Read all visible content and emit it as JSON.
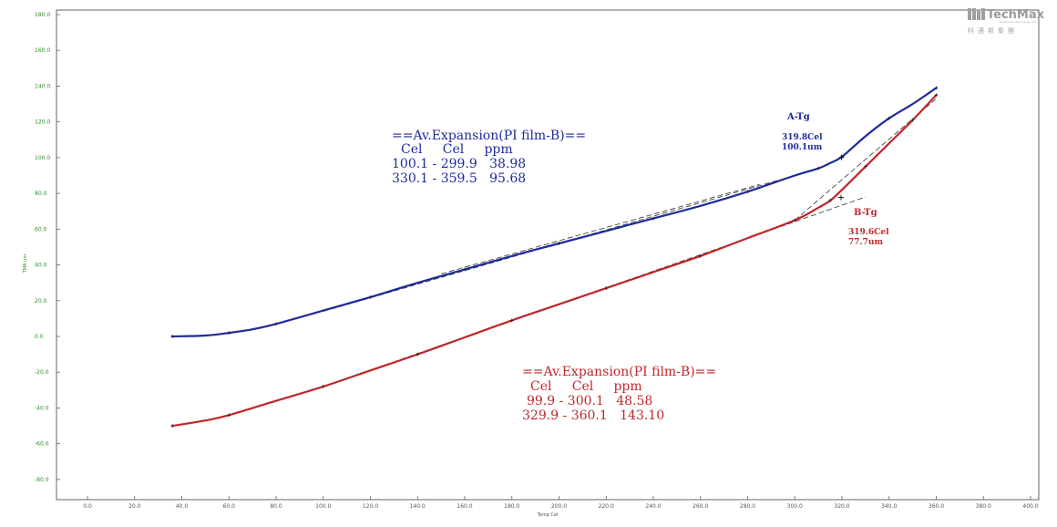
{
  "colors": {
    "blue": "#1f2a9a",
    "red": "#c0262a",
    "axis_text": "#2e8b2e",
    "dashed": "#333333"
  },
  "logo": {
    "name": "TechMax",
    "chinese": "科邁斯集團",
    "tagline": "Excellence Technology Ltd."
  },
  "chart_data": {
    "type": "line",
    "xlabel": "Temp Cel",
    "ylabel": "TMA um",
    "xlim": [
      -20,
      410
    ],
    "ylim": [
      -95,
      185
    ],
    "x_ticks": [
      "0.0",
      "20.0",
      "40.0",
      "60.0",
      "80.0",
      "100.0",
      "120.0",
      "140.0",
      "160.0",
      "180.0",
      "200.0",
      "220.0",
      "240.0",
      "260.0",
      "280.0",
      "300.0",
      "320.0",
      "340.0",
      "360.0",
      "380.0",
      "400.0"
    ],
    "y_ticks": [
      "180.0",
      "160.0",
      "140.0",
      "120.0",
      "100.0",
      "80.0",
      "60.0",
      "40.0",
      "20.0",
      "0.0",
      "-20.0",
      "-40.0",
      "-60.0",
      "-80.0"
    ],
    "series": [
      {
        "name": "A",
        "color": "#1f2a9a",
        "x": [
          36,
          50,
          60,
          70,
          80,
          100,
          120,
          140,
          160,
          180,
          200,
          220,
          240,
          260,
          280,
          300,
          310,
          315,
          320,
          330,
          340,
          350,
          360
        ],
        "y": [
          0,
          0.5,
          2,
          4,
          7,
          14.5,
          22,
          30,
          37.5,
          45,
          52,
          59,
          66,
          73,
          81,
          90,
          94,
          97,
          100.5,
          112,
          122,
          130,
          139
        ]
      },
      {
        "name": "B",
        "color": "#c0262a",
        "x": [
          36,
          50,
          60,
          80,
          100,
          120,
          140,
          160,
          180,
          200,
          220,
          240,
          260,
          280,
          300,
          310,
          315,
          320,
          330,
          340,
          350,
          360
        ],
        "y": [
          -50,
          -47,
          -44,
          -36,
          -28,
          -19,
          -10,
          -0.5,
          9,
          18,
          27,
          36,
          45,
          55,
          65,
          72,
          76,
          82,
          95,
          108,
          121,
          135
        ]
      }
    ],
    "fit_lines": [
      {
        "series": "A",
        "x": [
          100,
          300
        ],
        "y": [
          14,
          90
        ]
      },
      {
        "series": "A",
        "x": [
          150,
          285
        ],
        "y": [
          35,
          85
        ]
      },
      {
        "series": "B",
        "x": [
          100,
          330
        ],
        "y": [
          -28,
          78
        ]
      },
      {
        "series": "B",
        "x": [
          300,
          360
        ],
        "y": [
          65,
          133
        ]
      }
    ],
    "tg_markers": [
      {
        "series": "A",
        "x": 319.8,
        "y": 100.1
      },
      {
        "series": "B",
        "x": 319.6,
        "y": 77.7
      }
    ]
  },
  "annotations": {
    "blue_block": {
      "title": "==Av.Expansion(PI film-B)==",
      "header": "Cel     Cel     ppm",
      "rows": [
        "100.1 - 299.9   38.98",
        "330.1 - 359.5   95.68"
      ]
    },
    "red_block": {
      "title": "==Av.Expansion(PI film-B)==",
      "header": "Cel     Cel     ppm",
      "rows": [
        "99.9 - 300.1   48.58",
        "329.9 - 360.1   143.10"
      ]
    },
    "a_tg": {
      "label": "A-Tg",
      "temp": "319.8Cel",
      "value": "100.1um"
    },
    "b_tg": {
      "label": "B-Tg",
      "temp": "319.6Cel",
      "value": "77.7um"
    }
  }
}
